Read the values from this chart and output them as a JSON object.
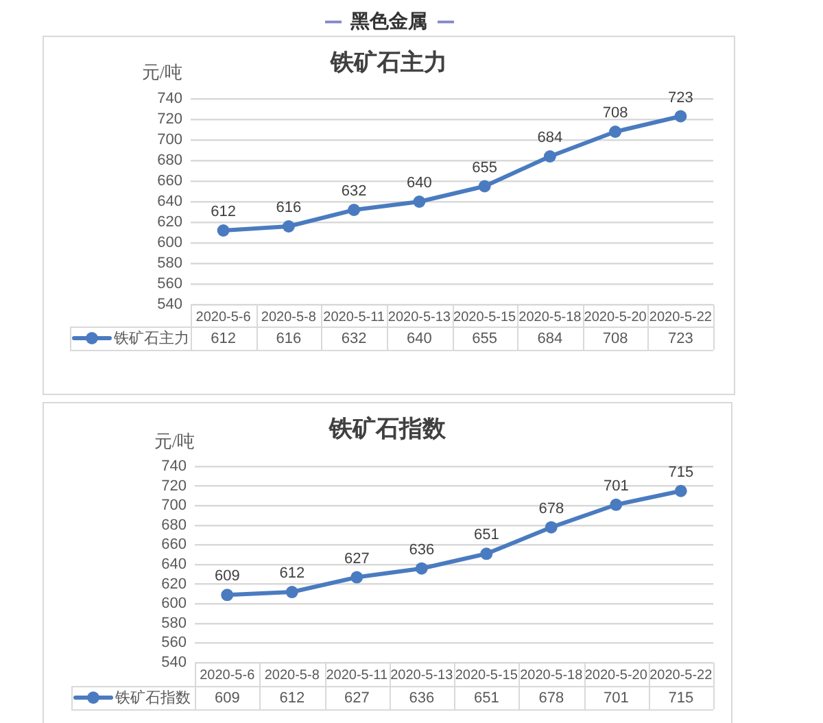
{
  "chart_data": [
    {
      "type": "line",
      "title": "铁矿石主力",
      "ylabel": "元/吨",
      "annotations": [
        "黑色金属",
        "612",
        "616",
        "632",
        "640",
        "655",
        "684",
        "708",
        "723"
      ],
      "categories": [
        "2020-5-6",
        "2020-5-8",
        "2020-5-11",
        "2020-5-13",
        "2020-5-15",
        "2020-5-18",
        "2020-5-20",
        "2020-5-22"
      ],
      "series": [
        {
          "name": "铁矿石主力",
          "color": "#4a7bc0",
          "values": [
            612,
            616,
            632,
            640,
            655,
            684,
            708,
            723
          ]
        }
      ],
      "ylim": [
        540,
        740
      ],
      "yticks": [
        540,
        560,
        580,
        600,
        620,
        640,
        660,
        680,
        700,
        720,
        740
      ],
      "grid": "y",
      "legend": "bottom",
      "marker": "circle",
      "line_style": "solid",
      "data_labels": true
    },
    {
      "type": "line",
      "title": "铁矿石指数",
      "ylabel": "元/吨",
      "annotations": [
        "609",
        "612",
        "627",
        "636",
        "651",
        "678",
        "701",
        "715"
      ],
      "categories": [
        "2020-5-6",
        "2020-5-8",
        "2020-5-11",
        "2020-5-13",
        "2020-5-15",
        "2020-5-18",
        "2020-5-20",
        "2020-5-22"
      ],
      "series": [
        {
          "name": "铁矿石指数",
          "color": "#4a7bc0",
          "values": [
            609,
            612,
            627,
            636,
            651,
            678,
            701,
            715
          ]
        }
      ],
      "ylim": [
        540,
        740
      ],
      "yticks": [
        540,
        560,
        580,
        600,
        620,
        640,
        660,
        680,
        700,
        720,
        740
      ],
      "grid": "y",
      "legend": "bottom",
      "marker": "circle",
      "line_style": "solid",
      "data_labels": true
    }
  ]
}
